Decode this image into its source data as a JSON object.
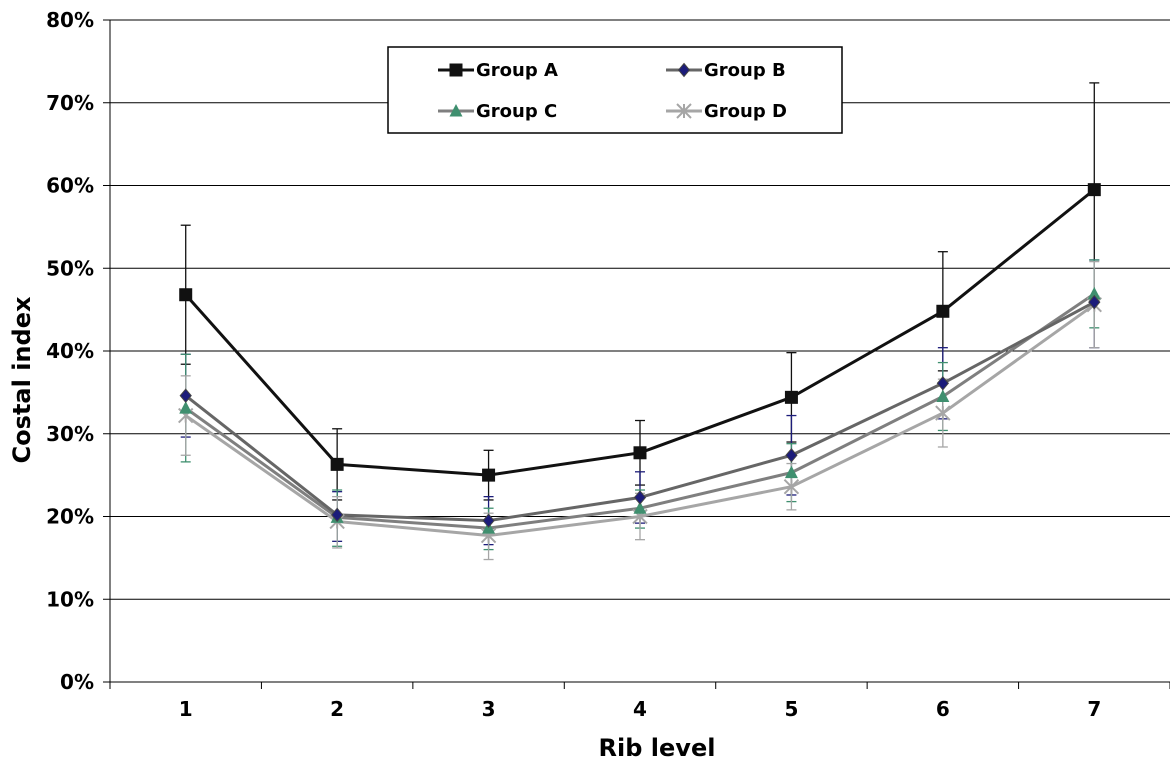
{
  "chart_data": {
    "type": "line",
    "title": "",
    "xlabel": "Rib level",
    "ylabel": "Costal index",
    "categories": [
      "1",
      "2",
      "3",
      "4",
      "5",
      "6",
      "7"
    ],
    "ylim": [
      0,
      80
    ],
    "yticks": [
      0,
      10,
      20,
      30,
      40,
      50,
      60,
      70,
      80
    ],
    "ytick_labels": [
      "0%",
      "10%",
      "20%",
      "30%",
      "40%",
      "50%",
      "60%",
      "70%",
      "80%"
    ],
    "grid": "horizontal",
    "legend_position": "top-center",
    "error_bars": "upper and lower",
    "series": [
      {
        "name": "Group A",
        "color": "#111111",
        "marker": "square",
        "values": [
          46.8,
          26.3,
          25.0,
          27.7,
          34.4,
          44.8,
          59.5
        ],
        "upper": [
          55.2,
          30.6,
          28.0,
          31.6,
          39.8,
          52.0,
          72.4
        ],
        "lower": [
          38.4,
          22.0,
          22.0,
          23.8,
          29.0,
          37.6,
          46.6
        ]
      },
      {
        "name": "Group B",
        "color": "#666666",
        "marker_color": "#1c1c7a",
        "errorbar_color": "#1c1c7a",
        "marker": "diamond",
        "values": [
          34.6,
          20.2,
          19.5,
          22.3,
          27.4,
          36.1,
          45.9
        ],
        "upper": [
          39.6,
          23.0,
          22.4,
          25.4,
          32.2,
          40.4,
          51.0
        ],
        "lower": [
          29.6,
          17.0,
          16.6,
          19.2,
          22.6,
          31.8,
          40.4
        ]
      },
      {
        "name": "Group C",
        "color": "#7f7f7f",
        "marker_color": "#3f8f6f",
        "errorbar_color": "#3f8f6f",
        "marker": "triangle",
        "values": [
          33.1,
          19.9,
          18.6,
          21.0,
          25.3,
          34.5,
          46.9
        ],
        "upper": [
          39.6,
          23.2,
          21.0,
          23.2,
          28.8,
          38.6,
          51.0
        ],
        "lower": [
          26.6,
          16.4,
          16.0,
          18.6,
          21.8,
          30.4,
          42.8
        ]
      },
      {
        "name": "Group D",
        "color": "#a6a6a6",
        "marker": "asterisk",
        "values": [
          32.2,
          19.4,
          17.7,
          20.0,
          23.6,
          32.5,
          45.6
        ],
        "upper": [
          37.0,
          22.4,
          20.4,
          22.8,
          26.4,
          36.6,
          50.8
        ],
        "lower": [
          27.4,
          16.2,
          14.8,
          17.2,
          20.8,
          28.4,
          40.4
        ]
      }
    ]
  }
}
